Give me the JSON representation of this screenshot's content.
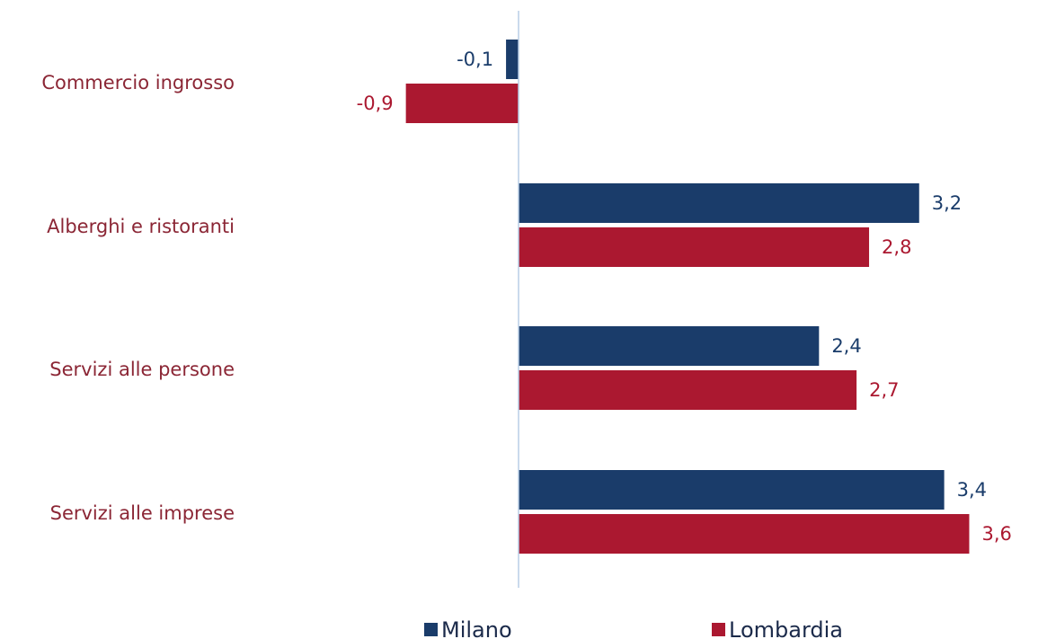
{
  "chart_data": {
    "type": "bar",
    "orientation": "horizontal",
    "categories": [
      "Commercio ingrosso",
      "Alberghi e ristoranti",
      "Servizi alle persone",
      "Servizi alle imprese"
    ],
    "series": [
      {
        "name": "Milano",
        "values": [
          -0.1,
          3.2,
          2.4,
          3.4
        ],
        "labels": [
          "-0,1",
          "3,2",
          "2,4",
          "3,4"
        ],
        "color": "#1a3c6a"
      },
      {
        "name": "Lombardia",
        "values": [
          -0.9,
          2.8,
          2.7,
          3.6
        ],
        "labels": [
          "-0,9",
          "2,8",
          "2,7",
          "3,6"
        ],
        "color": "#ab1830"
      }
    ],
    "title": "",
    "xlabel": "",
    "ylabel": "",
    "xlim": [
      -4,
      4
    ],
    "grid": false,
    "legend_position": "bottom",
    "axis_color": "#b8cde6",
    "category_label_color": "#8B2635"
  }
}
